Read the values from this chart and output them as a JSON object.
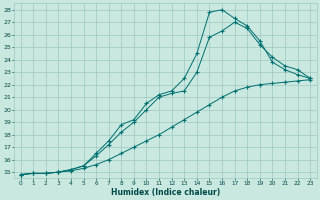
{
  "title": "",
  "xlabel": "Humidex (Indice chaleur)",
  "bg_color": "#c8e8e0",
  "grid_color": "#a0c8c0",
  "line_color": "#007070",
  "xlim": [
    -0.5,
    23.5
  ],
  "ylim": [
    14.5,
    28.5
  ],
  "xticks": [
    0,
    1,
    2,
    3,
    4,
    5,
    6,
    7,
    8,
    9,
    10,
    11,
    12,
    13,
    14,
    15,
    16,
    17,
    18,
    19,
    20,
    21,
    22,
    23
  ],
  "yticks": [
    15,
    16,
    17,
    18,
    19,
    20,
    21,
    22,
    23,
    24,
    25,
    26,
    27,
    28
  ],
  "line1_x": [
    0,
    1,
    2,
    3,
    4,
    5,
    6,
    7,
    8,
    9,
    10,
    11,
    12,
    13,
    14,
    15,
    16,
    17,
    18,
    19,
    20,
    21,
    22,
    23
  ],
  "line1_y": [
    14.8,
    14.9,
    14.9,
    15.0,
    15.1,
    15.3,
    15.6,
    16.0,
    16.5,
    17.0,
    17.5,
    18.0,
    18.6,
    19.2,
    19.8,
    20.4,
    21.0,
    21.5,
    21.8,
    22.0,
    22.1,
    22.2,
    22.3,
    22.4
  ],
  "line2_x": [
    0,
    1,
    2,
    3,
    4,
    5,
    6,
    7,
    8,
    9,
    10,
    11,
    12,
    13,
    14,
    15,
    16,
    17,
    18,
    19,
    20,
    21,
    22,
    23
  ],
  "line2_y": [
    14.8,
    14.9,
    14.9,
    15.0,
    15.2,
    15.5,
    16.3,
    17.2,
    18.2,
    19.0,
    20.0,
    21.0,
    21.3,
    21.5,
    23.0,
    25.8,
    26.3,
    27.0,
    26.5,
    25.2,
    24.2,
    23.5,
    23.2,
    22.5
  ],
  "line3_x": [
    0,
    1,
    2,
    3,
    4,
    5,
    6,
    7,
    8,
    9,
    10,
    11,
    12,
    13,
    14,
    15,
    16,
    17,
    18,
    19,
    20,
    21,
    22,
    23
  ],
  "line3_y": [
    14.8,
    14.9,
    14.9,
    15.0,
    15.2,
    15.5,
    16.5,
    17.5,
    18.8,
    19.2,
    20.5,
    21.2,
    21.5,
    22.5,
    24.5,
    27.8,
    28.0,
    27.3,
    26.7,
    25.5,
    23.8,
    23.2,
    22.8,
    22.5
  ]
}
